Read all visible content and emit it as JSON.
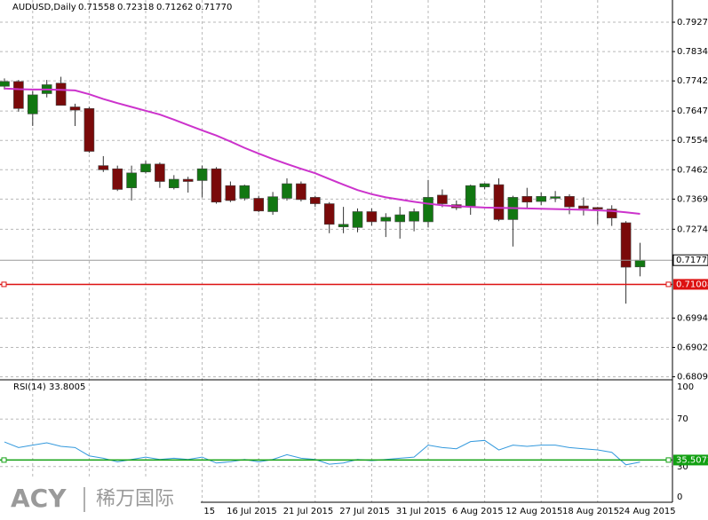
{
  "chart_data": {
    "type": "candlestick",
    "title": "AUDUSD,Daily",
    "header_ohlc": [
      "0.71558",
      "0.72318",
      "0.71262",
      "0.71770"
    ],
    "categories": [
      null,
      null,
      null,
      null,
      null,
      null,
      null,
      null,
      null,
      null,
      null,
      null,
      null,
      "15",
      null,
      null,
      "16 Jul 2015",
      null,
      null,
      null,
      "21 Jul 2015",
      null,
      null,
      null,
      "27 Jul 2015",
      null,
      null,
      null,
      "31 Jul 2015",
      null,
      null,
      null,
      "6 Aug 2015",
      null,
      null,
      null,
      "12 Aug 2015",
      null,
      null,
      null,
      "18 Aug 2015",
      null,
      null,
      null,
      "24 Aug 2015",
      null
    ],
    "open": [
      0.7725,
      0.774,
      0.7638,
      0.7702,
      0.7735,
      0.766,
      0.7655,
      0.7475,
      0.7465,
      0.7405,
      0.7455,
      0.748,
      0.7405,
      0.7432,
      0.7428,
      0.7465,
      0.7412,
      0.7372,
      0.7372,
      0.733,
      0.7372,
      0.7418,
      0.7375,
      0.7355,
      0.7282,
      0.728,
      0.733,
      0.73,
      0.7298,
      0.73,
      0.7298,
      0.7382,
      0.7352,
      0.7348,
      0.7408,
      0.7415,
      0.7305,
      0.7378,
      0.7362,
      0.7372,
      0.7378,
      0.7348,
      0.7343,
      0.7338,
      0.7295,
      0.71558
    ],
    "high": [
      0.775,
      0.7745,
      0.771,
      0.7745,
      0.7755,
      0.767,
      0.766,
      0.7505,
      0.7475,
      0.7475,
      0.749,
      0.7485,
      0.7445,
      0.744,
      0.7475,
      0.747,
      0.7425,
      0.7415,
      0.738,
      0.7392,
      0.7435,
      0.7425,
      0.738,
      0.736,
      0.7345,
      0.734,
      0.734,
      0.7325,
      0.7345,
      0.734,
      0.743,
      0.74,
      0.7365,
      0.7415,
      0.742,
      0.7435,
      0.738,
      0.7405,
      0.739,
      0.7395,
      0.7385,
      0.7375,
      0.7345,
      0.735,
      0.73,
      0.72318
    ],
    "low": [
      0.7715,
      0.7645,
      0.76,
      0.769,
      0.7665,
      0.76,
      0.7515,
      0.7455,
      0.7395,
      0.7365,
      0.745,
      0.7405,
      0.74,
      0.739,
      0.7375,
      0.7355,
      0.736,
      0.7365,
      0.7328,
      0.732,
      0.7365,
      0.7362,
      0.7345,
      0.7262,
      0.7262,
      0.7265,
      0.7286,
      0.725,
      0.7245,
      0.7268,
      0.728,
      0.7344,
      0.7335,
      0.732,
      0.74,
      0.73,
      0.722,
      0.734,
      0.735,
      0.736,
      0.7322,
      0.7318,
      0.729,
      0.7285,
      0.704,
      0.71262
    ],
    "close": [
      0.774,
      0.7655,
      0.7698,
      0.773,
      0.7665,
      0.765,
      0.752,
      0.7462,
      0.74,
      0.7452,
      0.748,
      0.7425,
      0.7432,
      0.7425,
      0.7465,
      0.736,
      0.7365,
      0.7412,
      0.7332,
      0.7377,
      0.7418,
      0.7368,
      0.7355,
      0.729,
      0.729,
      0.733,
      0.7298,
      0.7312,
      0.732,
      0.733,
      0.7375,
      0.7355,
      0.7342,
      0.7412,
      0.7418,
      0.7305,
      0.7375,
      0.736,
      0.7378,
      0.7377,
      0.7345,
      0.734,
      0.7338,
      0.731,
      0.7155,
      0.7177
    ],
    "up_color": "#117711",
    "down_color": "#7a0a0a",
    "ma_values": [
      0.7718,
      0.7716,
      0.7715,
      0.7715,
      0.7714,
      0.7712,
      0.77,
      0.7685,
      0.7672,
      0.766,
      0.7648,
      0.7636,
      0.762,
      0.7603,
      0.7586,
      0.757,
      0.7551,
      0.7531,
      0.7513,
      0.7496,
      0.748,
      0.7465,
      0.7451,
      0.7433,
      0.7415,
      0.7398,
      0.7385,
      0.7375,
      0.7368,
      0.7361,
      0.7355,
      0.735,
      0.7347,
      0.7345,
      0.7343,
      0.7342,
      0.7341,
      0.734,
      0.7339,
      0.7338,
      0.7337,
      0.7336,
      0.7334,
      0.7332,
      0.7328,
      0.7323
    ],
    "ma_color": "#cc33cc",
    "ylim": [
      0.68,
      0.7997
    ],
    "yticks": [
      {
        "value": 0.7927,
        "label": "0.79270"
      },
      {
        "value": 0.78345,
        "label": "0.78345"
      },
      {
        "value": 0.7742,
        "label": "0.77420"
      },
      {
        "value": 0.7647,
        "label": "0.76470"
      },
      {
        "value": 0.75545,
        "label": "0.75545"
      },
      {
        "value": 0.7462,
        "label": "0.74620"
      },
      {
        "value": 0.73695,
        "label": "0.73695"
      },
      {
        "value": 0.72745,
        "label": "0.72745"
      },
      {
        "value": 0.69945,
        "label": "0.69945"
      },
      {
        "value": 0.6902,
        "label": "0.69020"
      },
      {
        "value": 0.68095,
        "label": "0.68095"
      }
    ],
    "grid": true,
    "current_price": {
      "value": 0.7177,
      "label": "0.71770"
    },
    "level_line": {
      "value": 0.71008,
      "label": "0.71008",
      "color": "#dd1111"
    },
    "indicator": {
      "title": "RSI(14) 33.8005",
      "values": [
        50.7,
        46,
        48,
        50,
        47,
        46,
        39,
        37,
        34,
        36,
        38,
        36,
        37,
        36,
        38,
        33,
        34,
        36,
        34,
        36,
        40,
        37,
        36,
        32,
        33,
        36,
        35,
        36,
        37,
        38,
        48,
        46,
        45,
        51,
        52,
        44,
        48,
        47,
        48,
        48,
        46,
        45,
        44,
        42,
        31.5,
        33.8005
      ],
      "color": "#3399dd",
      "ylim": [
        0,
        100
      ],
      "yticks": [
        100,
        70,
        30,
        0
      ],
      "level_line": {
        "value": 35.5072,
        "label": "35.5072",
        "color": "#12a012"
      }
    },
    "logo": {
      "brand": "ACY",
      "name": "稀万国际"
    }
  }
}
